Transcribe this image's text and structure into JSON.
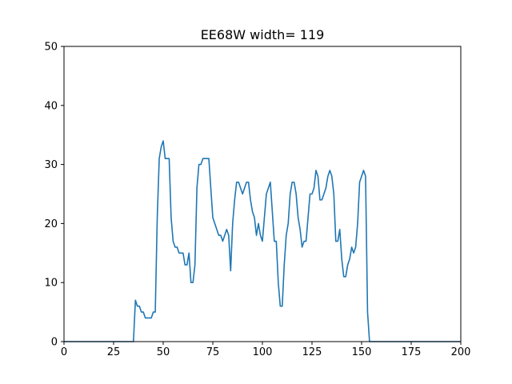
{
  "chart_data": {
    "type": "line",
    "title": "EE68W width= 119",
    "xlabel": "",
    "ylabel": "",
    "xlim": [
      0,
      200
    ],
    "ylim": [
      0,
      50
    ],
    "grid": false,
    "x_ticks": [
      0,
      25,
      50,
      75,
      100,
      125,
      150,
      175,
      200
    ],
    "y_ticks": [
      0,
      10,
      20,
      30,
      40,
      50
    ],
    "x_tick_labels": [
      "0",
      "25",
      "50",
      "75",
      "100",
      "125",
      "150",
      "175",
      "200"
    ],
    "y_tick_labels": [
      "0",
      "10",
      "20",
      "30",
      "40",
      "50"
    ],
    "series": [
      {
        "color": "#1f77b4",
        "x": [
          0,
          35,
          36,
          37,
          38,
          39,
          40,
          41,
          42,
          43,
          44,
          45,
          46,
          47,
          48,
          49,
          50,
          51,
          52,
          53,
          54,
          55,
          56,
          57,
          58,
          59,
          60,
          61,
          62,
          63,
          64,
          65,
          66,
          67,
          68,
          69,
          70,
          71,
          72,
          73,
          74,
          75,
          76,
          77,
          78,
          79,
          80,
          81,
          82,
          83,
          84,
          85,
          86,
          87,
          88,
          89,
          90,
          91,
          92,
          93,
          94,
          95,
          96,
          97,
          98,
          99,
          100,
          101,
          102,
          103,
          104,
          105,
          106,
          107,
          108,
          109,
          110,
          111,
          112,
          113,
          114,
          115,
          116,
          117,
          118,
          119,
          120,
          121,
          122,
          123,
          124,
          125,
          126,
          127,
          128,
          129,
          130,
          131,
          132,
          133,
          134,
          135,
          136,
          137,
          138,
          139,
          140,
          141,
          142,
          143,
          144,
          145,
          146,
          147,
          148,
          149,
          150,
          151,
          152,
          153,
          154,
          200
        ],
        "y": [
          0,
          0,
          7,
          6,
          6,
          5,
          5,
          4,
          4,
          4,
          4,
          5,
          5,
          21,
          31,
          33,
          34,
          31,
          31,
          31,
          21,
          17,
          16,
          16,
          15,
          15,
          15,
          13,
          13,
          15,
          10,
          10,
          13,
          26,
          30,
          30,
          31,
          31,
          31,
          31,
          26,
          21,
          20,
          19,
          18,
          18,
          17,
          18,
          19,
          18,
          12,
          20,
          24,
          27,
          27,
          26,
          25,
          26,
          27,
          27,
          24,
          22,
          21,
          18,
          20,
          18,
          17,
          21,
          25,
          26,
          27,
          22,
          17,
          17,
          10,
          6,
          6,
          13,
          18,
          20,
          25,
          27,
          27,
          25,
          21,
          19,
          16,
          17,
          17,
          21,
          25,
          25,
          26,
          29,
          28,
          24,
          24,
          25,
          26,
          28,
          29,
          28,
          25,
          17,
          17,
          19,
          14,
          11,
          11,
          13,
          14,
          16,
          15,
          16,
          20,
          27,
          28,
          29,
          28,
          5,
          0,
          0
        ]
      }
    ]
  }
}
